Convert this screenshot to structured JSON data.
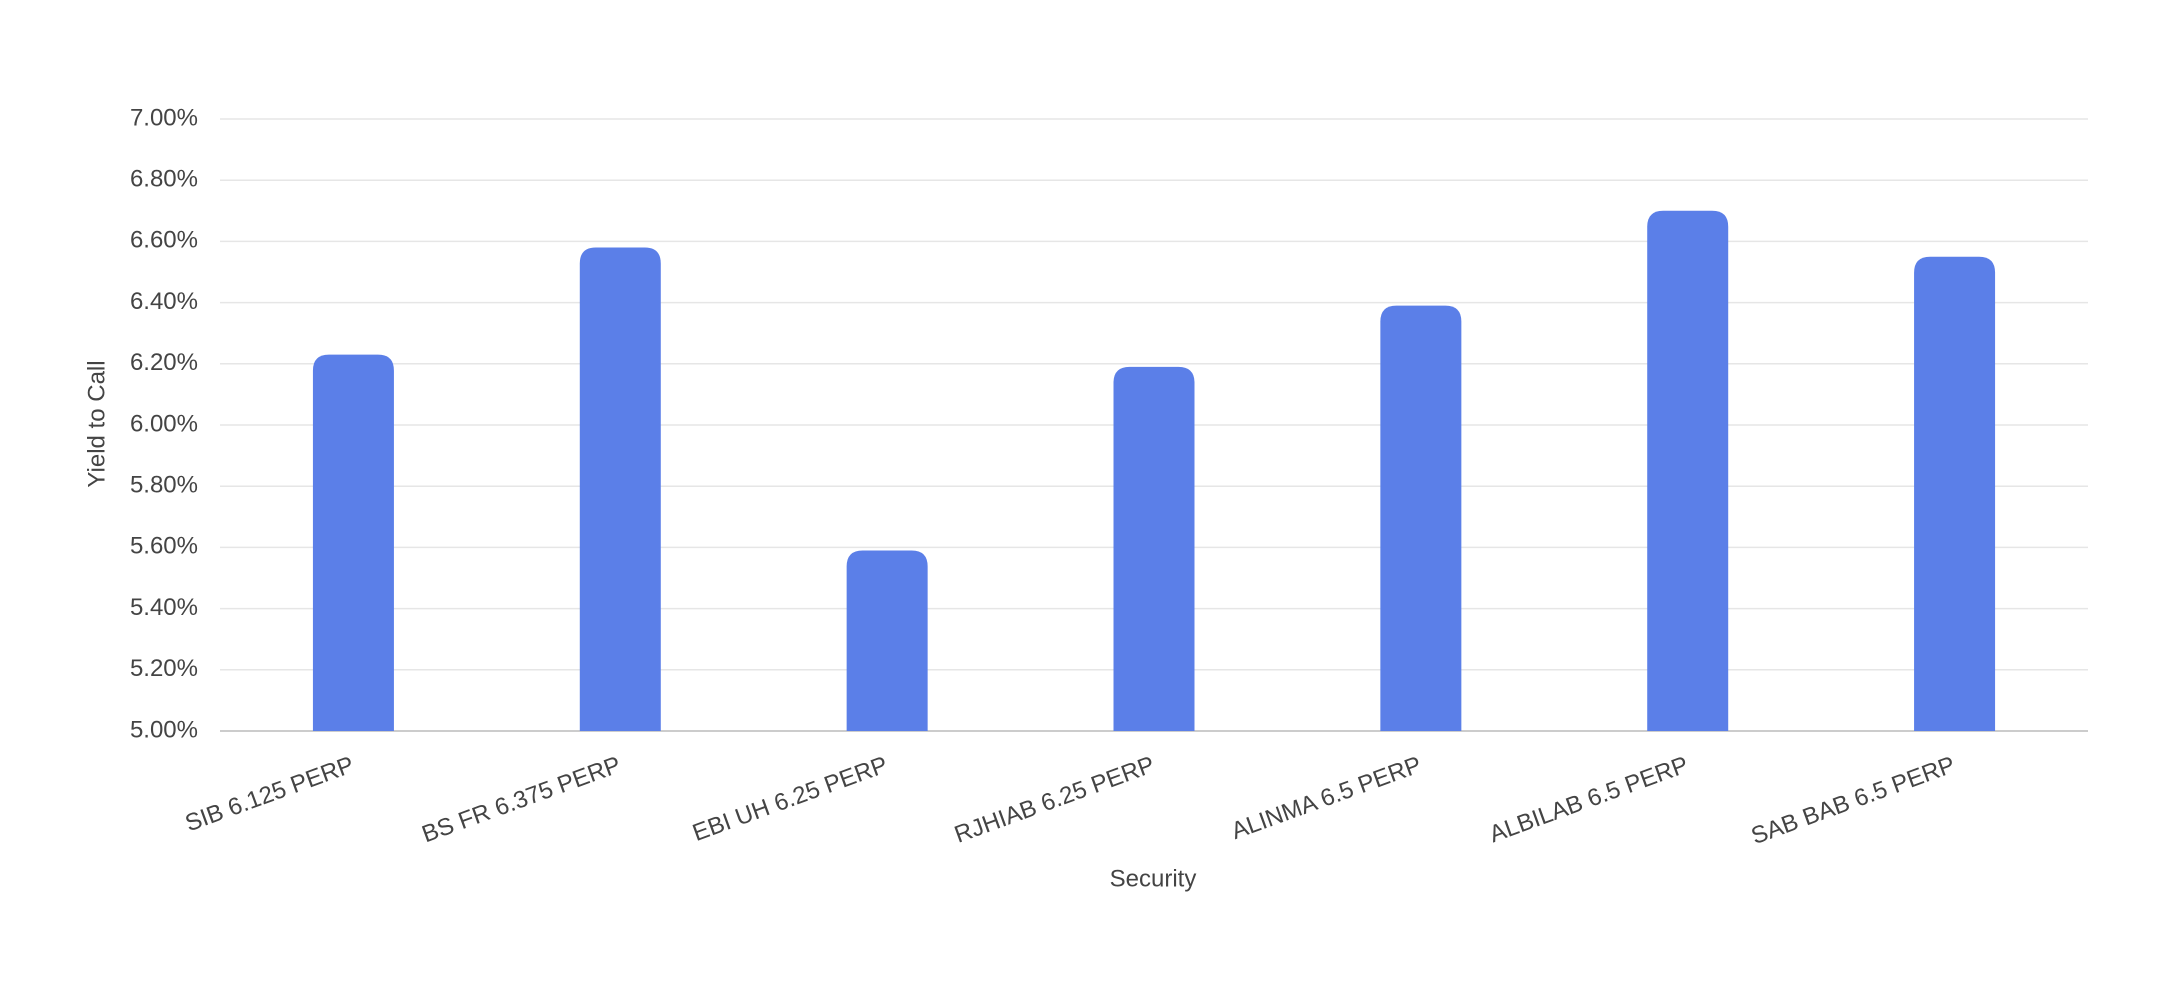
{
  "chart_data": {
    "type": "bar",
    "x_label": "Security",
    "y_label": "Yield to Call",
    "categories": [
      "SIB 6.125 PERP",
      "BS FR 6.375 PERP",
      "EBI UH 6.25 PERP",
      "RJHIAB 6.25 PERP",
      "ALINMA 6.5 PERP",
      "ALBILAB 6.5 PERP",
      "SAB BAB 6.5 PERP"
    ],
    "values": [
      6.23,
      6.58,
      5.59,
      6.19,
      6.39,
      6.7,
      6.55
    ],
    "color": "#5b7fe8",
    "ylim": [
      5.0,
      7.0
    ],
    "yticks": [
      {
        "value": 5.0,
        "label": "5.00%"
      },
      {
        "value": 5.2,
        "label": "5.20%"
      },
      {
        "value": 5.4,
        "label": "5.40%"
      },
      {
        "value": 5.6,
        "label": "5.60%"
      },
      {
        "value": 5.8,
        "label": "5.80%"
      },
      {
        "value": 6.0,
        "label": "6.00%"
      },
      {
        "value": 6.2,
        "label": "6.20%"
      },
      {
        "value": 6.4,
        "label": "6.40%"
      },
      {
        "value": 6.6,
        "label": "6.60%"
      },
      {
        "value": 6.8,
        "label": "6.80%"
      },
      {
        "value": 7.0,
        "label": "7.00%"
      }
    ],
    "grid": true
  }
}
